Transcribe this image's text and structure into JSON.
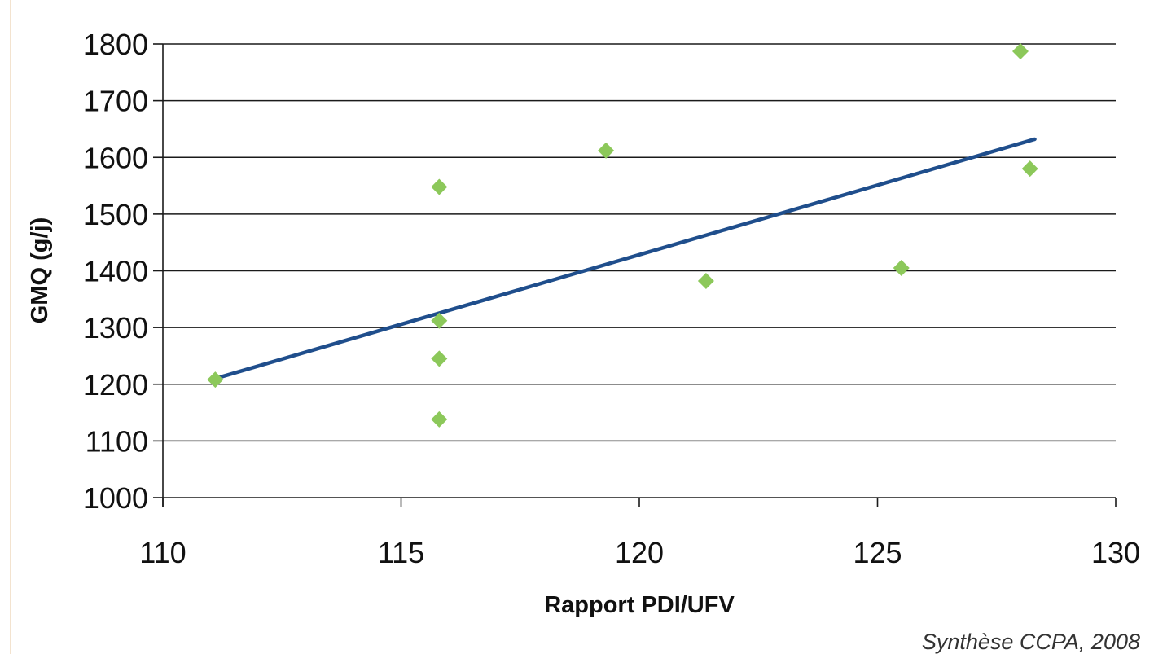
{
  "chart_data": {
    "type": "scatter",
    "xlabel": "Rapport PDI/UFV",
    "ylabel": "GMQ (g/j)",
    "xlim": [
      110,
      130
    ],
    "ylim": [
      1000,
      1800
    ],
    "x_ticks": [
      "110",
      "115",
      "120",
      "125",
      "130"
    ],
    "y_ticks": [
      "1000",
      "1100",
      "1200",
      "1300",
      "1400",
      "1500",
      "1600",
      "1700",
      "1800"
    ],
    "grid": "horizontal",
    "marker": "diamond",
    "colors": {
      "points": "#8cc85a",
      "trendline": "#1f4e8c",
      "grid": "#1a1a1a"
    },
    "series": [
      {
        "points": [
          {
            "x": 111.1,
            "y": 1208
          },
          {
            "x": 115.8,
            "y": 1548
          },
          {
            "x": 115.8,
            "y": 1312
          },
          {
            "x": 115.8,
            "y": 1245
          },
          {
            "x": 115.8,
            "y": 1138
          },
          {
            "x": 119.3,
            "y": 1612
          },
          {
            "x": 121.4,
            "y": 1382
          },
          {
            "x": 125.5,
            "y": 1405
          },
          {
            "x": 128.0,
            "y": 1787
          },
          {
            "x": 128.2,
            "y": 1580
          }
        ]
      }
    ],
    "trendline": {
      "x": [
        111.1,
        128.3
      ],
      "y": [
        1210,
        1632
      ]
    }
  },
  "source": "Synthèse CCPA, 2008"
}
